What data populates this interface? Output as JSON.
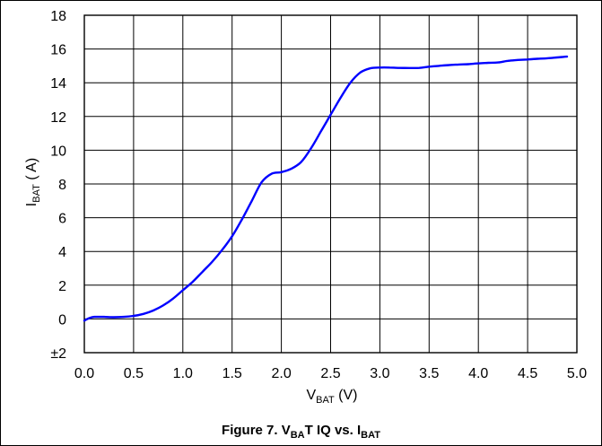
{
  "chart_data": {
    "type": "line",
    "title": "",
    "xlabel": {
      "main": "V",
      "sub": "BAT",
      "unit": " (V)"
    },
    "ylabel": {
      "main": "I",
      "sub": "BAT",
      "unit": " (  A)"
    },
    "xlim": [
      0.0,
      5.0
    ],
    "ylim": [
      -2,
      18
    ],
    "xticks": [
      0.0,
      0.5,
      1.0,
      1.5,
      2.0,
      2.5,
      3.0,
      3.5,
      4.0,
      4.5,
      5.0
    ],
    "xtick_labels": [
      "0.0",
      "0.5",
      "1.0",
      "1.5",
      "2.0",
      "2.5",
      "3.0",
      "3.5",
      "4.0",
      "4.5",
      "5.0"
    ],
    "yticks": [
      18,
      16,
      14,
      12,
      10,
      8,
      6,
      4,
      2,
      0,
      -2
    ],
    "ytick_labels": [
      "18",
      "16",
      "14",
      "12",
      "10",
      "8",
      "6",
      "4",
      "2",
      "0",
      "±2"
    ],
    "grid": true,
    "legend": "none",
    "line_color": "#0000ff",
    "series": [
      {
        "x": [
          0.0,
          0.05,
          0.1,
          0.2,
          0.3,
          0.4,
          0.5,
          0.6,
          0.7,
          0.8,
          0.9,
          1.0,
          1.1,
          1.2,
          1.3,
          1.4,
          1.5,
          1.6,
          1.7,
          1.8,
          1.9,
          2.0,
          2.1,
          2.2,
          2.3,
          2.4,
          2.5,
          2.6,
          2.7,
          2.8,
          2.9,
          3.0,
          3.1,
          3.2,
          3.3,
          3.4,
          3.5,
          3.6,
          3.7,
          3.8,
          3.9,
          4.0,
          4.1,
          4.2,
          4.3,
          4.4,
          4.5,
          4.6,
          4.7,
          4.8,
          4.9
        ],
        "values": [
          -0.1,
          0.05,
          0.12,
          0.12,
          0.1,
          0.12,
          0.18,
          0.3,
          0.5,
          0.8,
          1.2,
          1.7,
          2.2,
          2.8,
          3.4,
          4.1,
          4.9,
          5.9,
          7.0,
          8.1,
          8.6,
          8.7,
          8.9,
          9.3,
          10.1,
          11.1,
          12.1,
          13.1,
          14.0,
          14.6,
          14.85,
          14.9,
          14.9,
          14.88,
          14.87,
          14.88,
          14.95,
          15.0,
          15.05,
          15.08,
          15.1,
          15.15,
          15.18,
          15.2,
          15.3,
          15.35,
          15.38,
          15.42,
          15.45,
          15.5,
          15.55
        ]
      }
    ]
  },
  "caption": {
    "prefix": "Figure 7. V",
    "sub1": "BA",
    "mid": "T IQ vs. I",
    "sub2": "BAT"
  }
}
